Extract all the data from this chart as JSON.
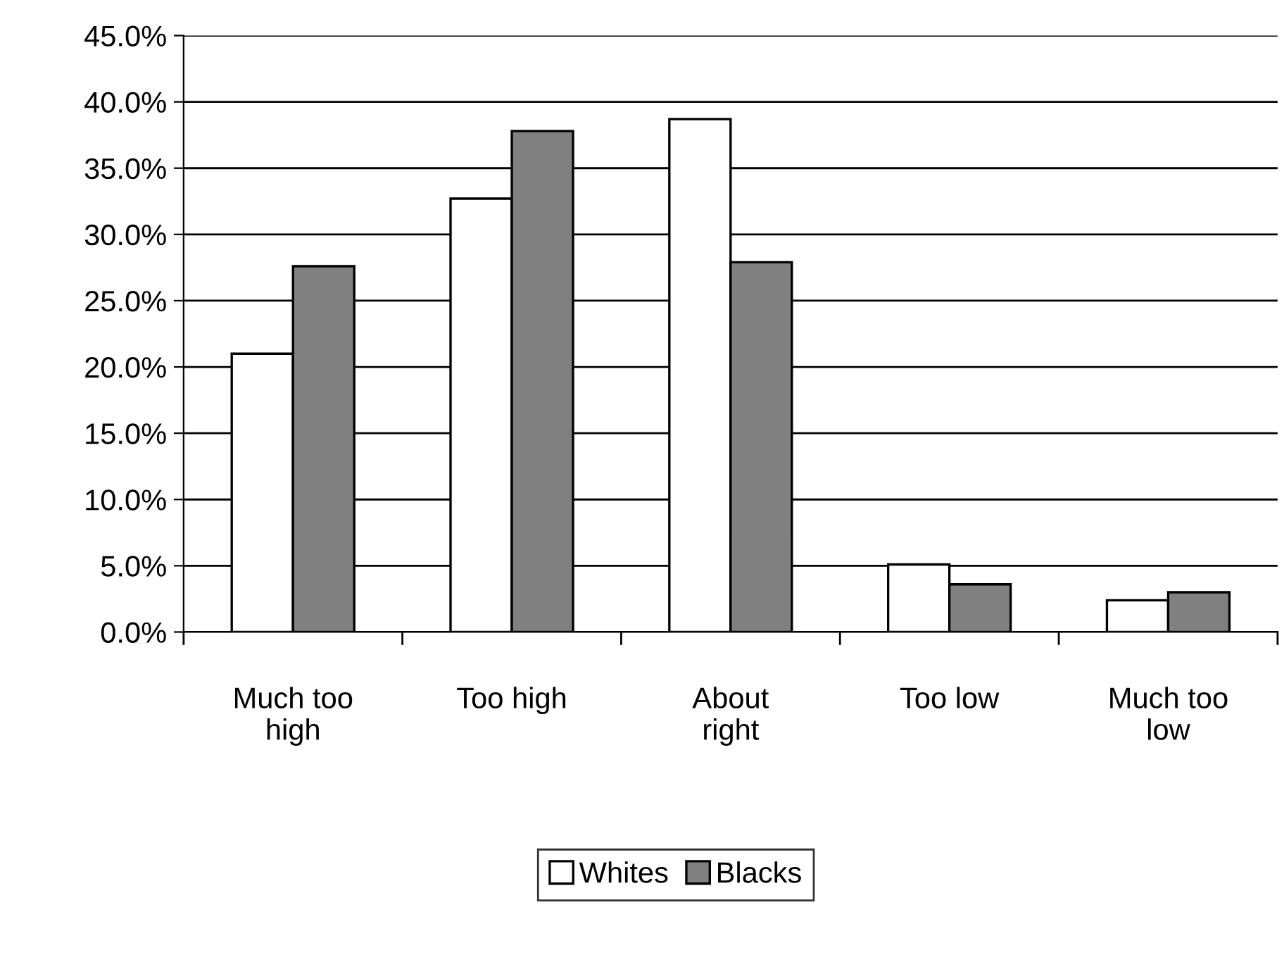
{
  "chart_data": {
    "type": "bar",
    "categories": [
      "Much too high",
      "Too high",
      "About right",
      "Too low",
      "Much too low"
    ],
    "series": [
      {
        "name": "Whites",
        "color": "#ffffff",
        "values": [
          21.0,
          32.7,
          38.7,
          5.1,
          2.4
        ]
      },
      {
        "name": "Blacks",
        "color": "#808080",
        "values": [
          27.6,
          37.8,
          27.9,
          3.6,
          3.0
        ]
      }
    ],
    "ylim": [
      0,
      45
    ],
    "yticks": [
      {
        "value": 0,
        "label": "0.0%"
      },
      {
        "value": 5,
        "label": "5.0%"
      },
      {
        "value": 10,
        "label": "10.0%"
      },
      {
        "value": 15,
        "label": "15.0%"
      },
      {
        "value": 20,
        "label": "20.0%"
      },
      {
        "value": 25,
        "label": "25.0%"
      },
      {
        "value": 30,
        "label": "30.0%"
      },
      {
        "value": 35,
        "label": "35.0%"
      },
      {
        "value": 40,
        "label": "40.0%"
      },
      {
        "value": 45,
        "label": "45.0%"
      }
    ],
    "grid": "y",
    "legend": "bottom"
  }
}
